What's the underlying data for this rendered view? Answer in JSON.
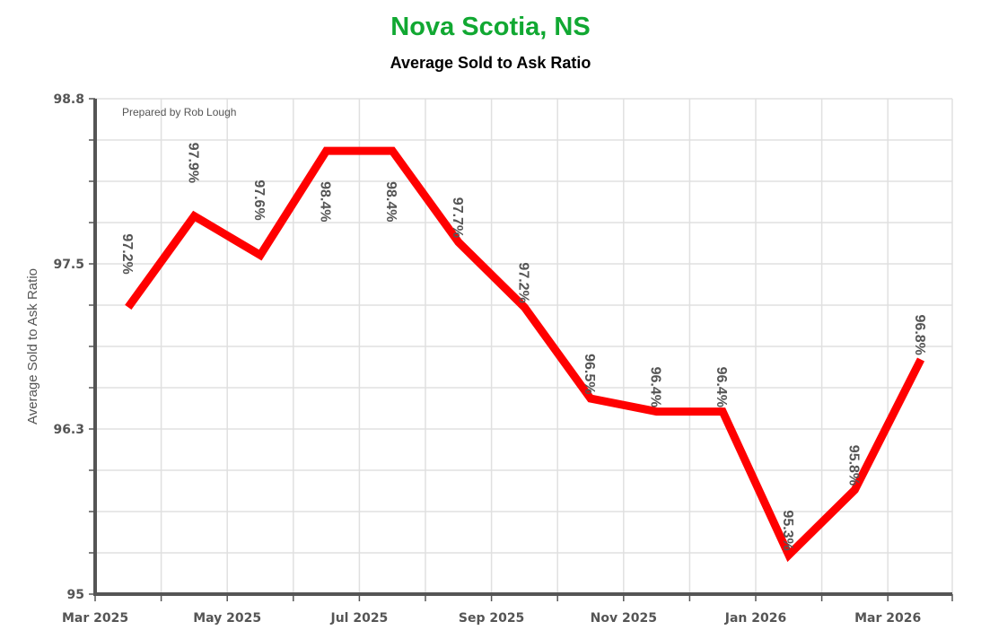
{
  "header": {
    "title": "Nova Scotia, NS",
    "subtitle": "Average Sold to Ask Ratio"
  },
  "credit": "Prepared by Rob Lough",
  "colors": {
    "title": "#11a832",
    "line": "#ff0000",
    "axis": "#555555",
    "grid": "#e0e0e0"
  },
  "chart_data": {
    "type": "line",
    "title": "Nova Scotia, NS",
    "subtitle": "Average Sold to Ask Ratio",
    "xlabel": "",
    "ylabel": "Average Sold to Ask Ratio",
    "ylim": [
      95,
      98.8
    ],
    "yticks": [
      "98.8",
      "97.5",
      "96.3",
      "95"
    ],
    "xticks": [
      "Mar 2025",
      "May 2025",
      "Jul 2025",
      "Sep 2025",
      "Nov 2025",
      "Jan 2026",
      "Mar 2026"
    ],
    "grid": true,
    "legend": "none",
    "categories": [
      "Mar 2025",
      "Apr 2025",
      "May 2025",
      "Jun 2025",
      "Jul 2025",
      "Aug 2025",
      "Sep 2025",
      "Oct 2025",
      "Nov 2025",
      "Dec 2025",
      "Jan 2026",
      "Feb 2026",
      "Mar 2026"
    ],
    "series": [
      {
        "name": "Average Sold to Ask Ratio",
        "values": [
          97.2,
          97.9,
          97.6,
          98.4,
          98.4,
          97.7,
          97.2,
          96.5,
          96.4,
          96.4,
          95.3,
          95.8,
          96.8
        ],
        "labels": [
          "97.2%",
          "97.9%",
          "97.6%",
          "98.4%",
          "98.4%",
          "97.7%",
          "97.2%",
          "96.5%",
          "96.4%",
          "96.4%",
          "95.3%",
          "95.8%",
          "96.8%"
        ],
        "color": "#ff0000"
      }
    ],
    "annotations": [
      "Prepared by Rob Lough"
    ]
  }
}
